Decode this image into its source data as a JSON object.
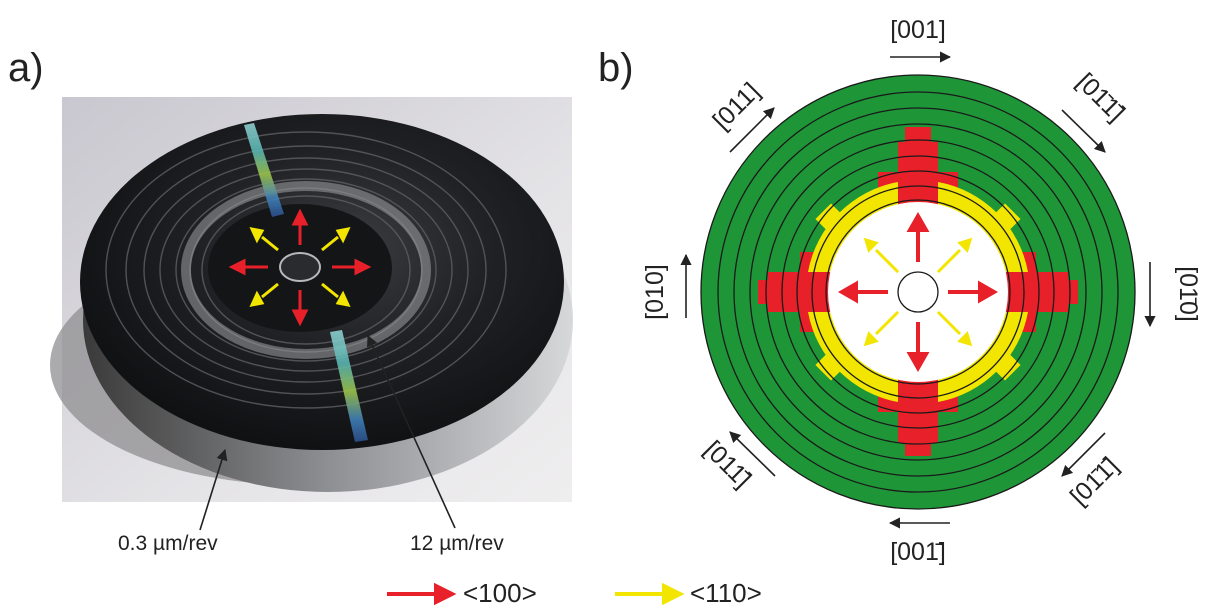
{
  "panel_a": {
    "label": "a)",
    "annotation_inner_pitch": "0.3 µm/rev",
    "annotation_outer_pitch": "12 µm/rev"
  },
  "panel_b": {
    "label": "b)",
    "directions": [
      {
        "id": "top",
        "text": "[001]"
      },
      {
        "id": "top-right",
        "text": "[01̄1̄]"
      },
      {
        "id": "right",
        "text": "[01̄0]"
      },
      {
        "id": "bottom-right",
        "text": "[01̄1̄]"
      },
      {
        "id": "bottom",
        "text": "[001̄]"
      },
      {
        "id": "bottom-left",
        "text": "[011̄]"
      },
      {
        "id": "left",
        "text": "[010]"
      },
      {
        "id": "top-left",
        "text": "[011]"
      }
    ]
  },
  "legend": {
    "items": [
      {
        "label": "<100>",
        "color": "#e8202a"
      },
      {
        "label": "<110>",
        "color": "#f2e600"
      }
    ]
  },
  "colors": {
    "substrate_green": "#1e9638",
    "red_domain": "#e8202a",
    "yellow_domain": "#f2e600",
    "disk_black": "#1b1c1e"
  }
}
